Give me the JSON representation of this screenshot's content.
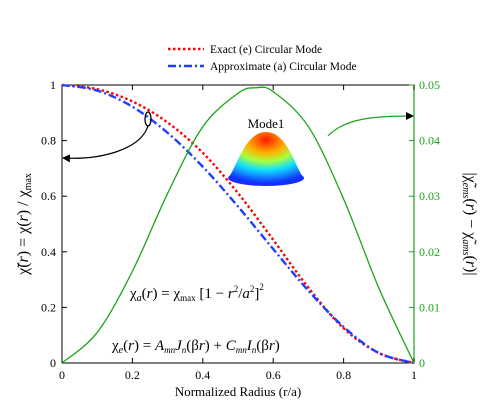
{
  "chart_data": {
    "type": "line",
    "xlabel": "Normalized Radius (r/a)",
    "ylabel_left": "χ̃(r) = χ(r) / χmax",
    "ylabel_right": "|χ̃ems(r) − χ̃ams(r)|",
    "xlim": [
      0,
      1
    ],
    "ylim_left": [
      0,
      1
    ],
    "ylim_right": [
      0,
      0.05
    ],
    "x_ticks": [
      "0",
      "0.2",
      "0.4",
      "0.6",
      "0.8",
      "1"
    ],
    "y_left_ticks": [
      "0",
      "0.2",
      "0.4",
      "0.6",
      "0.8",
      "1"
    ],
    "y_right_ticks": [
      "0",
      "0.01",
      "0.02",
      "0.03",
      "0.04",
      "0.05"
    ],
    "legend_position": "top-center",
    "grid": false,
    "series": [
      {
        "name": "Exact (e) Circular Mode",
        "axis": "left",
        "color": "#ff0000",
        "style": "dotted",
        "x": [
          0,
          0.1,
          0.2,
          0.3,
          0.4,
          0.5,
          0.6,
          0.7,
          0.8,
          0.9,
          1.0
        ],
        "y": [
          1.0,
          0.985,
          0.941,
          0.865,
          0.756,
          0.611,
          0.443,
          0.271,
          0.125,
          0.036,
          0.0
        ]
      },
      {
        "name": "Approximate (a) Circular Mode",
        "axis": "left",
        "color": "#1f3fff",
        "style": "dash-dot",
        "x": [
          0,
          0.1,
          0.2,
          0.3,
          0.4,
          0.5,
          0.6,
          0.7,
          0.8,
          0.9,
          1.0
        ],
        "y": [
          1.0,
          0.98,
          0.922,
          0.828,
          0.706,
          0.563,
          0.41,
          0.26,
          0.13,
          0.036,
          0.0
        ]
      },
      {
        "axis": "right",
        "color": "#1aa51a",
        "style": "solid",
        "x": [
          0,
          0.1,
          0.2,
          0.3,
          0.4,
          0.5,
          0.55,
          0.6,
          0.7,
          0.8,
          0.9,
          1.0
        ],
        "y": [
          0.0,
          0.0055,
          0.0165,
          0.0305,
          0.0425,
          0.0485,
          0.0495,
          0.0488,
          0.0425,
          0.0295,
          0.0135,
          0.0
        ]
      }
    ],
    "annotations": {
      "inset_label": "Mode1",
      "equation_a": "χa(r) = χmax [1 − r²/a²]²",
      "equation_e": "χe(r) = AmnJn(βr) + CmnIn(βr)"
    }
  }
}
